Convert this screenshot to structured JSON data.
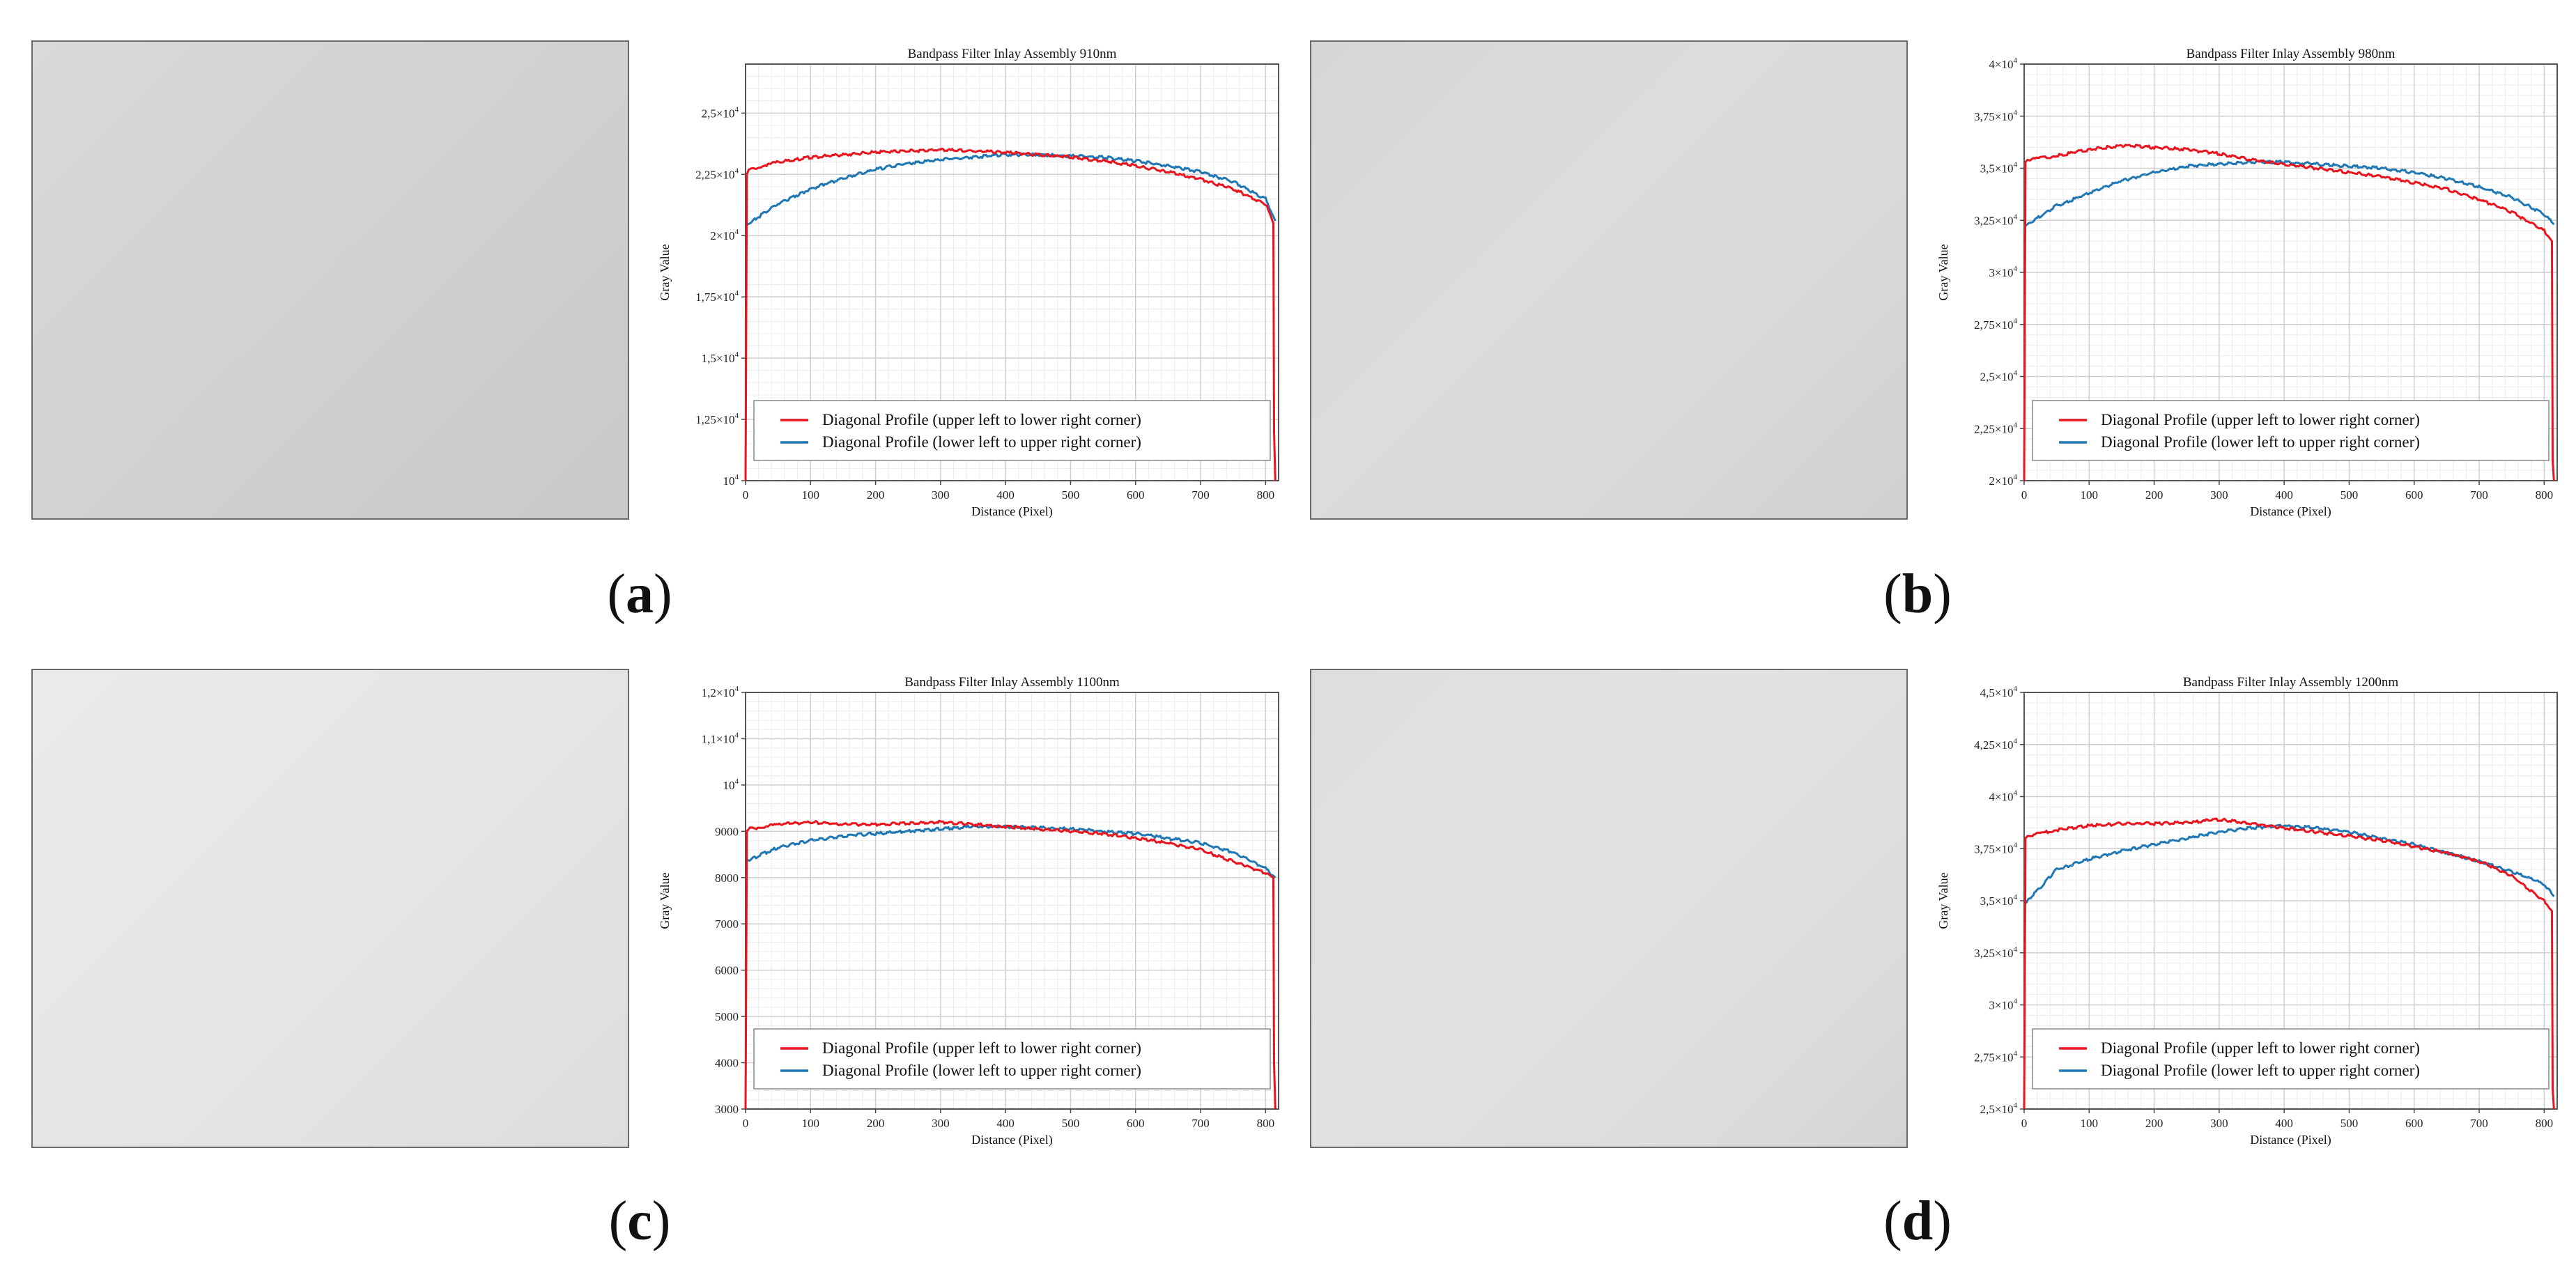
{
  "panels": [
    {
      "label_open": "(",
      "letter": "a",
      "label_close": ")"
    },
    {
      "label_open": "(",
      "letter": "b",
      "label_close": ")"
    },
    {
      "label_open": "(",
      "letter": "c",
      "label_close": ")"
    },
    {
      "label_open": "(",
      "letter": "d",
      "label_close": ")"
    }
  ],
  "legend": {
    "series1": "Diagonal Profile (upper left to lower right corner)",
    "series2": "Diagonal Profile (lower left to upper right corner)"
  },
  "colors": {
    "series1": "#e8141e",
    "series2": "#1f77b4",
    "grid_major": "#cfcfcf",
    "grid_minor": "#ececec"
  },
  "chart_data": [
    {
      "type": "line",
      "title": "Bandpass Filter Inlay Assembly 910nm",
      "xlabel": "Distance (Pixel)",
      "ylabel": "Gray Value",
      "xlim": [
        0,
        820
      ],
      "ylim": [
        10000,
        27000
      ],
      "x_ticks": [
        0,
        100,
        200,
        300,
        400,
        500,
        600,
        700,
        800
      ],
      "y_ticks": [
        10000,
        12500,
        15000,
        17500,
        20000,
        22500,
        25000
      ],
      "y_tick_labels": [
        {
          "m": "10",
          "e": "4"
        },
        {
          "m": "1,25×10",
          "e": "4"
        },
        {
          "m": "1,5×10",
          "e": "4"
        },
        {
          "m": "1,75×10",
          "e": "4"
        },
        {
          "m": "2×10",
          "e": "4"
        },
        {
          "m": "2,25×10",
          "e": "4"
        },
        {
          "m": "2,5×10",
          "e": "4"
        }
      ],
      "grid": true,
      "legend_position": "lower-center",
      "series": [
        {
          "name": "Diagonal Profile (upper left to lower right corner)",
          "x": [
            0,
            2,
            5,
            50,
            100,
            150,
            200,
            250,
            300,
            350,
            400,
            450,
            500,
            550,
            600,
            650,
            700,
            750,
            800,
            812,
            813,
            815
          ],
          "y": [
            10000,
            22500,
            22700,
            23000,
            23200,
            23300,
            23400,
            23450,
            23500,
            23450,
            23400,
            23300,
            23200,
            23050,
            22850,
            22600,
            22300,
            21900,
            21300,
            20500,
            12000,
            10000
          ]
        },
        {
          "name": "Diagonal Profile (lower left to upper right corner)",
          "x": [
            0,
            50,
            100,
            150,
            200,
            250,
            300,
            350,
            400,
            450,
            500,
            550,
            600,
            650,
            700,
            750,
            800,
            815
          ],
          "y": [
            20400,
            21300,
            21900,
            22350,
            22700,
            22950,
            23100,
            23200,
            23300,
            23300,
            23250,
            23200,
            23050,
            22850,
            22600,
            22200,
            21500,
            20600
          ]
        }
      ]
    },
    {
      "type": "line",
      "title": "Bandpass Filter Inlay Assembly 980nm",
      "xlabel": "Distance (Pixel)",
      "ylabel": "Gray Value",
      "xlim": [
        0,
        820
      ],
      "ylim": [
        20000,
        40000
      ],
      "x_ticks": [
        0,
        100,
        200,
        300,
        400,
        500,
        600,
        700,
        800
      ],
      "y_ticks": [
        20000,
        22500,
        25000,
        27500,
        30000,
        32500,
        35000,
        37500,
        40000
      ],
      "y_tick_labels": [
        {
          "m": "2×10",
          "e": "4"
        },
        {
          "m": "2,25×10",
          "e": "4"
        },
        {
          "m": "2,5×10",
          "e": "4"
        },
        {
          "m": "2,75×10",
          "e": "4"
        },
        {
          "m": "3×10",
          "e": "4"
        },
        {
          "m": "3,25×10",
          "e": "4"
        },
        {
          "m": "3,5×10",
          "e": "4"
        },
        {
          "m": "3,75×10",
          "e": "4"
        },
        {
          "m": "4×10",
          "e": "4"
        }
      ],
      "grid": true,
      "legend_position": "lower-center",
      "series": [
        {
          "name": "Diagonal Profile (upper left to lower right corner)",
          "x": [
            0,
            2,
            5,
            50,
            100,
            150,
            200,
            250,
            300,
            350,
            400,
            450,
            500,
            550,
            600,
            650,
            700,
            750,
            800,
            812,
            813,
            815
          ],
          "y": [
            20000,
            35300,
            35400,
            35600,
            35900,
            36100,
            36000,
            35900,
            35700,
            35400,
            35200,
            35000,
            34800,
            34600,
            34300,
            34000,
            33500,
            32900,
            32000,
            31500,
            21000,
            20000
          ]
        },
        {
          "name": "Diagonal Profile (lower left to upper right corner)",
          "x": [
            0,
            50,
            100,
            150,
            200,
            250,
            300,
            350,
            400,
            450,
            500,
            550,
            600,
            650,
            700,
            750,
            800,
            815
          ],
          "y": [
            32200,
            33200,
            33800,
            34400,
            34800,
            35100,
            35200,
            35300,
            35300,
            35200,
            35100,
            35000,
            34800,
            34500,
            34100,
            33600,
            32800,
            32300
          ]
        }
      ]
    },
    {
      "type": "line",
      "title": "Bandpass Filter Inlay Assembly 1100nm",
      "xlabel": "Distance (Pixel)",
      "ylabel": "Gray Value",
      "xlim": [
        0,
        820
      ],
      "ylim": [
        3000,
        12000
      ],
      "x_ticks": [
        0,
        100,
        200,
        300,
        400,
        500,
        600,
        700,
        800
      ],
      "y_ticks": [
        3000,
        4000,
        5000,
        6000,
        7000,
        8000,
        9000,
        10000,
        11000,
        12000
      ],
      "y_tick_labels": [
        {
          "m": "3000",
          "e": ""
        },
        {
          "m": "4000",
          "e": ""
        },
        {
          "m": "5000",
          "e": ""
        },
        {
          "m": "6000",
          "e": ""
        },
        {
          "m": "7000",
          "e": ""
        },
        {
          "m": "8000",
          "e": ""
        },
        {
          "m": "9000",
          "e": ""
        },
        {
          "m": "10",
          "e": "4"
        },
        {
          "m": "1,1×10",
          "e": "4"
        },
        {
          "m": "1,2×10",
          "e": "4"
        }
      ],
      "grid": true,
      "legend_position": "lower-center",
      "series": [
        {
          "name": "Diagonal Profile (upper left to lower right corner)",
          "x": [
            0,
            2,
            5,
            50,
            100,
            150,
            200,
            250,
            300,
            350,
            400,
            450,
            500,
            550,
            600,
            650,
            700,
            750,
            800,
            812,
            813,
            815
          ],
          "y": [
            3000,
            9000,
            9050,
            9150,
            9200,
            9150,
            9150,
            9170,
            9200,
            9150,
            9100,
            9050,
            9000,
            8950,
            8850,
            8750,
            8600,
            8350,
            8100,
            8000,
            4000,
            3000
          ]
        },
        {
          "name": "Diagonal Profile (lower left to upper right corner)",
          "x": [
            0,
            50,
            100,
            150,
            200,
            250,
            300,
            350,
            400,
            450,
            500,
            550,
            600,
            650,
            700,
            750,
            800,
            815
          ],
          "y": [
            8350,
            8650,
            8800,
            8900,
            8950,
            9000,
            9050,
            9100,
            9100,
            9080,
            9050,
            9000,
            8950,
            8850,
            8750,
            8550,
            8200,
            8000
          ]
        }
      ]
    },
    {
      "type": "line",
      "title": "Bandpass Filter Inlay Assembly 1200nm",
      "xlabel": "Distance (Pixel)",
      "ylabel": "Gray Value",
      "xlim": [
        0,
        820
      ],
      "ylim": [
        25000,
        45000
      ],
      "x_ticks": [
        0,
        100,
        200,
        300,
        400,
        500,
        600,
        700,
        800
      ],
      "y_ticks": [
        25000,
        27500,
        30000,
        32500,
        35000,
        37500,
        40000,
        42500,
        45000
      ],
      "y_tick_labels": [
        {
          "m": "2,5×10",
          "e": "4"
        },
        {
          "m": "2,75×10",
          "e": "4"
        },
        {
          "m": "3×10",
          "e": "4"
        },
        {
          "m": "3,25×10",
          "e": "4"
        },
        {
          "m": "3,5×10",
          "e": "4"
        },
        {
          "m": "3,75×10",
          "e": "4"
        },
        {
          "m": "4×10",
          "e": "4"
        },
        {
          "m": "4,25×10",
          "e": "4"
        },
        {
          "m": "4,5×10",
          "e": "4"
        }
      ],
      "grid": true,
      "legend_position": "lower-center",
      "series": [
        {
          "name": "Diagonal Profile (upper left to lower right corner)",
          "x": [
            0,
            2,
            5,
            50,
            100,
            150,
            200,
            250,
            300,
            350,
            400,
            450,
            500,
            550,
            600,
            650,
            700,
            750,
            800,
            812,
            813,
            815
          ],
          "y": [
            25000,
            38000,
            38100,
            38400,
            38600,
            38700,
            38700,
            38750,
            38900,
            38700,
            38500,
            38300,
            38100,
            37900,
            37600,
            37300,
            36900,
            36200,
            35000,
            34500,
            26000,
            25000
          ]
        },
        {
          "name": "Diagonal Profile (lower left to upper right corner)",
          "x": [
            0,
            50,
            100,
            150,
            200,
            250,
            300,
            350,
            400,
            450,
            500,
            550,
            600,
            650,
            700,
            750,
            800,
            815
          ],
          "y": [
            34800,
            36500,
            37000,
            37400,
            37700,
            38000,
            38300,
            38500,
            38600,
            38500,
            38300,
            38000,
            37700,
            37300,
            36900,
            36400,
            35800,
            35200
          ]
        }
      ]
    }
  ]
}
